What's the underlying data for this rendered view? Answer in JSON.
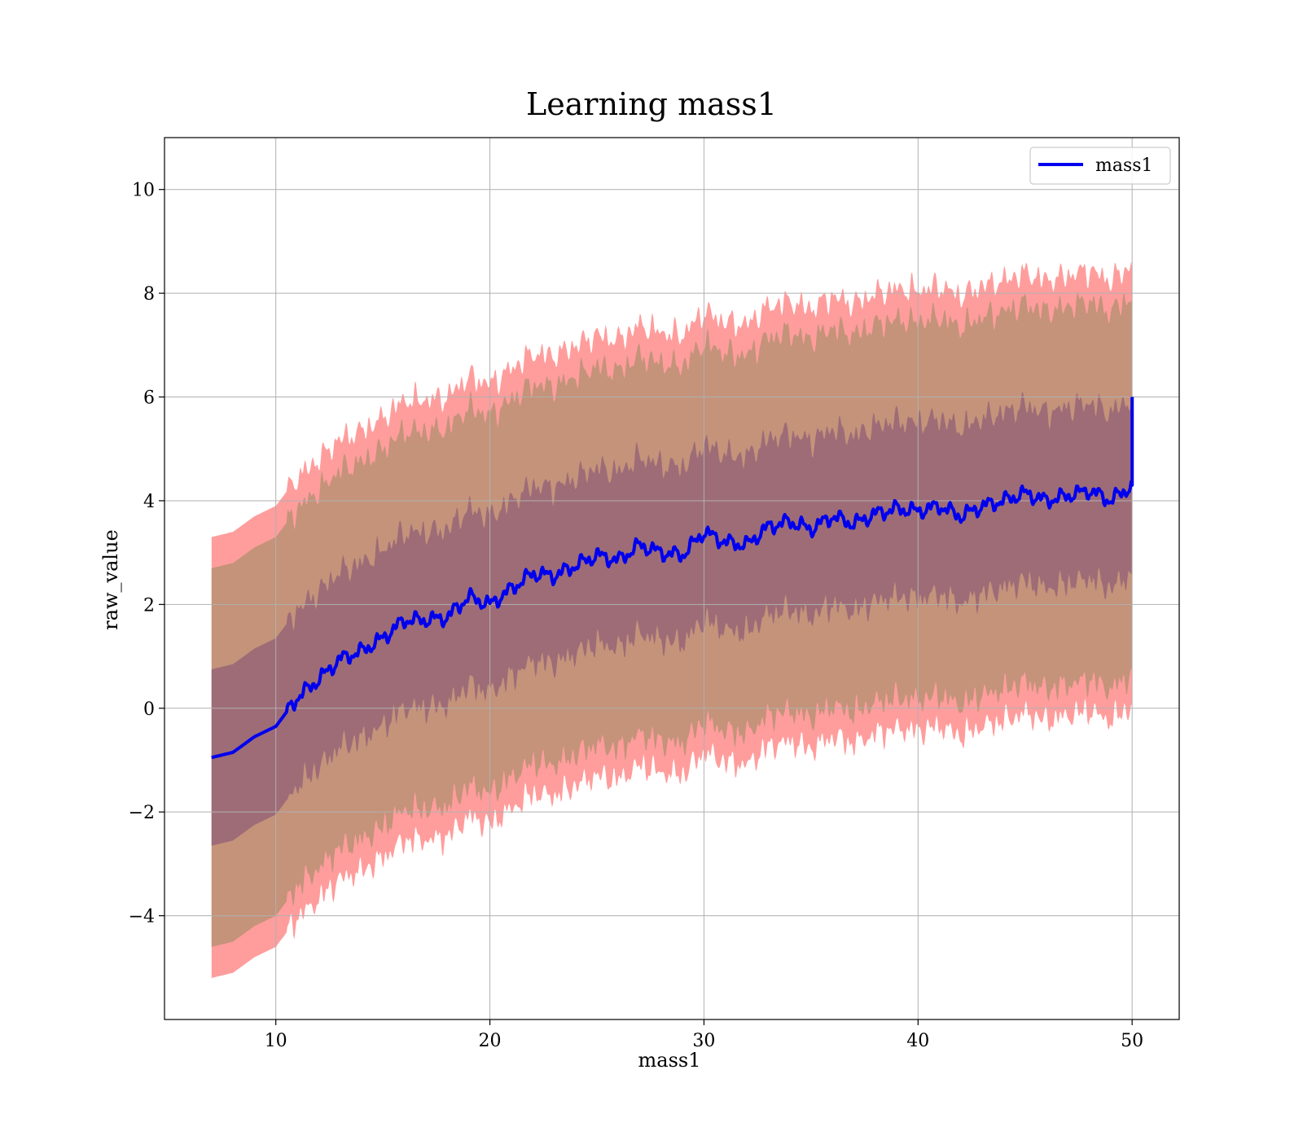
{
  "chart_data": {
    "type": "line",
    "title": "Learning mass1",
    "xlabel": "mass1",
    "ylabel": "raw_value",
    "xlim": [
      4.8,
      52.2
    ],
    "ylim": [
      -6.0,
      11.0
    ],
    "x_ticks": [
      10,
      20,
      30,
      40,
      50
    ],
    "x_tick_labels": [
      "10",
      "20",
      "30",
      "40",
      "50"
    ],
    "y_ticks": [
      -4,
      -2,
      0,
      2,
      4,
      6,
      8,
      10
    ],
    "y_tick_labels": [
      "−4",
      "−2",
      "0",
      "2",
      "4",
      "6",
      "8",
      "10"
    ],
    "grid": true,
    "legend": {
      "placement": "top-right",
      "entries": [
        "mass1"
      ]
    },
    "series": [
      {
        "name": "mass1",
        "color": "#0000ee",
        "x": [
          7,
          8,
          9,
          10,
          11,
          12,
          13,
          14,
          15,
          16,
          17,
          18,
          19,
          20,
          21,
          22,
          23,
          24,
          25,
          26,
          27,
          28,
          29,
          30,
          31,
          32,
          33,
          34,
          35,
          36,
          37,
          38,
          39,
          40,
          41,
          42,
          43,
          44,
          45,
          46,
          47,
          48,
          49,
          50
        ],
        "y": [
          -0.95,
          -0.85,
          -0.55,
          -0.35,
          0.2,
          0.55,
          0.95,
          1.1,
          1.35,
          1.7,
          1.7,
          1.75,
          2.15,
          2.0,
          2.3,
          2.6,
          2.55,
          2.75,
          2.95,
          2.85,
          3.15,
          3.0,
          2.95,
          3.4,
          3.2,
          3.15,
          3.5,
          3.6,
          3.45,
          3.7,
          3.55,
          3.75,
          3.85,
          3.8,
          3.9,
          3.7,
          3.9,
          4.0,
          4.15,
          4.0,
          4.1,
          4.2,
          4.0,
          4.3
        ],
        "end_value": 6.0
      }
    ],
    "bands": [
      {
        "name": "outer",
        "color": "#ff9d9d",
        "upper_offset": 4.25,
        "lower_offset": 4.25
      },
      {
        "name": "middle",
        "color": "#c4937a",
        "upper_offset": 3.65,
        "lower_offset": 3.65
      },
      {
        "name": "inner",
        "color": "#9e6c77",
        "upper_offset": 1.7,
        "lower_offset": 1.7
      }
    ]
  }
}
